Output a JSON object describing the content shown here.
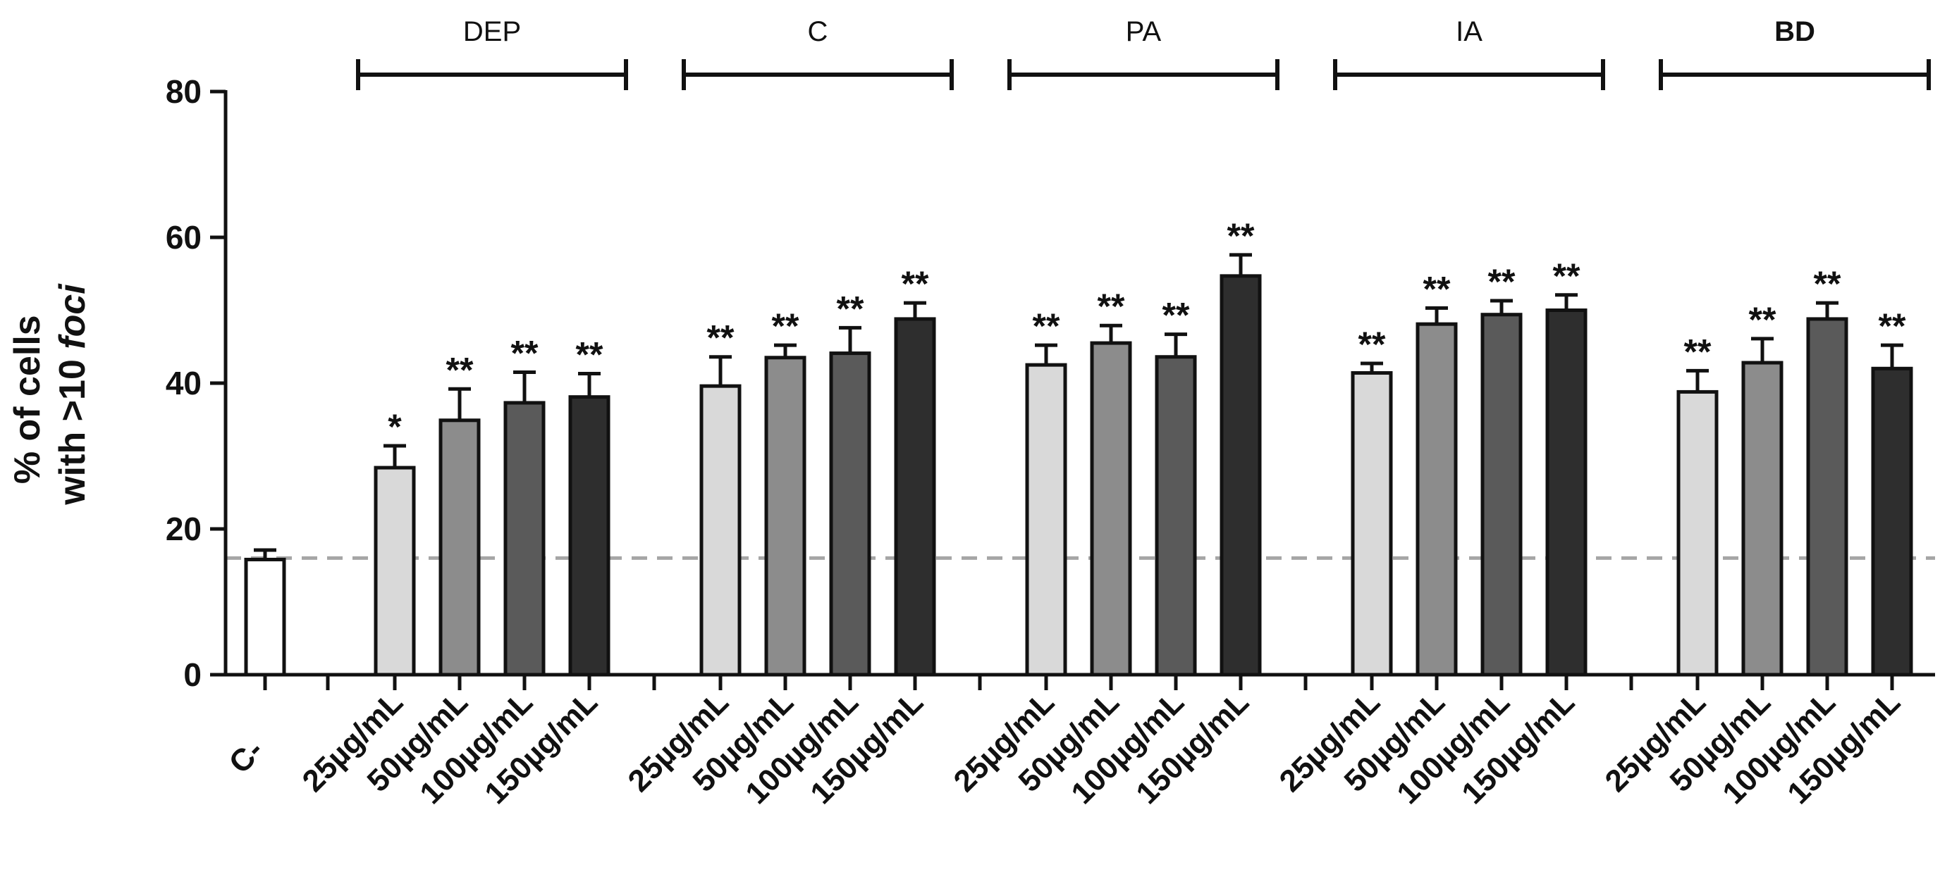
{
  "chart_data": {
    "type": "bar",
    "title": "",
    "xlabel": "",
    "ylabel_line1": "% of cells",
    "ylabel_line2_prefix": "with >10 ",
    "ylabel_line2_italic": "foci",
    "ylim": [
      0,
      80
    ],
    "yticks": [
      "0",
      "20",
      "40",
      "60",
      "80"
    ],
    "reference_line": {
      "value": 16,
      "style": "dashed",
      "color": "#a6a6a6"
    },
    "control": {
      "label": "C-",
      "value": 15.8,
      "error": 1.3,
      "sig": "",
      "color": "#ffffff"
    },
    "dose_labels": [
      "25µg/mL",
      "50µg/mL",
      "100µg/mL",
      "150µg/mL"
    ],
    "dose_colors": [
      "#d9d9d9",
      "#8c8c8c",
      "#5a5a5a",
      "#2e2e2e"
    ],
    "groups": [
      {
        "name": "DEP",
        "bold": false,
        "values": [
          28.4,
          34.9,
          37.3,
          38.1
        ],
        "errors": [
          3.0,
          4.3,
          4.2,
          3.2
        ],
        "sig": [
          "*",
          "**",
          "**",
          "**"
        ]
      },
      {
        "name": "C",
        "bold": false,
        "values": [
          39.6,
          43.5,
          44.1,
          48.8
        ],
        "errors": [
          4.0,
          1.7,
          3.5,
          2.2
        ],
        "sig": [
          "**",
          "**",
          "**",
          "**"
        ]
      },
      {
        "name": "PA",
        "bold": false,
        "values": [
          42.5,
          45.5,
          43.6,
          54.7
        ],
        "errors": [
          2.7,
          2.4,
          3.1,
          2.9
        ],
        "sig": [
          "**",
          "**",
          "**",
          "**"
        ]
      },
      {
        "name": "IA",
        "bold": false,
        "values": [
          41.4,
          48.1,
          49.4,
          50.0
        ],
        "errors": [
          1.3,
          2.2,
          1.9,
          2.1
        ],
        "sig": [
          "**",
          "**",
          "**",
          "**"
        ]
      },
      {
        "name": "BD",
        "bold": true,
        "values": [
          38.8,
          42.8,
          48.8,
          42.0
        ],
        "errors": [
          2.9,
          3.3,
          2.2,
          3.2
        ],
        "sig": [
          "**",
          "**",
          "**",
          "**"
        ]
      }
    ]
  }
}
